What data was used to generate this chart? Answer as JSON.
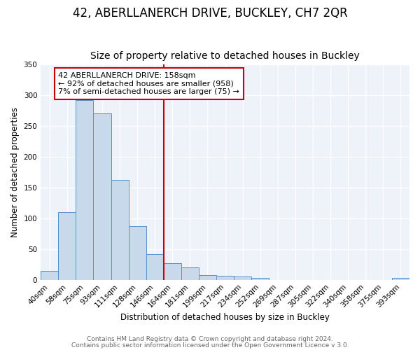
{
  "title": "42, ABERLLANERCH DRIVE, BUCKLEY, CH7 2QR",
  "subtitle": "Size of property relative to detached houses in Buckley",
  "xlabel": "Distribution of detached houses by size in Buckley",
  "ylabel": "Number of detached properties",
  "bar_labels": [
    "40sqm",
    "58sqm",
    "75sqm",
    "93sqm",
    "111sqm",
    "128sqm",
    "146sqm",
    "164sqm",
    "181sqm",
    "199sqm",
    "217sqm",
    "234sqm",
    "252sqm",
    "269sqm",
    "287sqm",
    "305sqm",
    "322sqm",
    "340sqm",
    "358sqm",
    "375sqm",
    "393sqm"
  ],
  "bar_heights": [
    15,
    110,
    292,
    271,
    163,
    87,
    42,
    27,
    20,
    8,
    7,
    5,
    3,
    0,
    0,
    0,
    0,
    0,
    0,
    0,
    3
  ],
  "bar_color": "#c8d9ec",
  "bar_edge_color": "#5b8fc9",
  "vline_color": "#cc0000",
  "annotation_text": "42 ABERLLANERCH DRIVE: 158sqm\n← 92% of detached houses are smaller (958)\n7% of semi-detached houses are larger (75) →",
  "annotation_box_edge": "#cc0000",
  "ylim": [
    0,
    350
  ],
  "yticks": [
    0,
    50,
    100,
    150,
    200,
    250,
    300,
    350
  ],
  "footer_line1": "Contains HM Land Registry data © Crown copyright and database right 2024.",
  "footer_line2": "Contains public sector information licensed under the Open Government Licence v 3.0.",
  "background_color": "#eef2f9",
  "title_fontsize": 12,
  "subtitle_fontsize": 10,
  "label_fontsize": 8.5,
  "tick_fontsize": 7.5,
  "annotation_fontsize": 8,
  "footer_fontsize": 6.5
}
